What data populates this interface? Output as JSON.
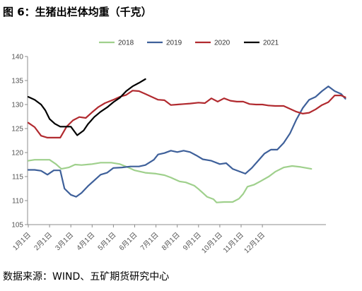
{
  "title": "图 6：生猪出栏体均重（千克）",
  "source": "数据来源：WIND、五矿期货研究中心",
  "chart_data": {
    "type": "line",
    "ylim": [
      105,
      140
    ],
    "yticks": [
      105,
      110,
      115,
      120,
      125,
      130,
      135,
      140
    ],
    "x_ticks": [
      "1月1日",
      "2月1日",
      "3月1日",
      "4月1日",
      "5月1日",
      "6月1日",
      "7月1日",
      "8月1日",
      "9月1日",
      "10月1日",
      "11月1日",
      "12月1日"
    ],
    "x_range_months": [
      0,
      12
    ],
    "legend_position": "top",
    "series": [
      {
        "name": "2018",
        "color": "#9fd08c",
        "points": [
          [
            0.0,
            118.3
          ],
          [
            0.3,
            118.5
          ],
          [
            0.6,
            118.5
          ],
          [
            1.0,
            118.5
          ],
          [
            1.3,
            117.6
          ],
          [
            1.55,
            116.6
          ],
          [
            1.9,
            116.9
          ],
          [
            2.2,
            117.5
          ],
          [
            2.5,
            117.4
          ],
          [
            3.0,
            117.6
          ],
          [
            3.4,
            117.9
          ],
          [
            3.9,
            117.9
          ],
          [
            4.3,
            117.6
          ],
          [
            4.7,
            116.9
          ],
          [
            5.0,
            116.3
          ],
          [
            5.5,
            115.8
          ],
          [
            6.0,
            115.6
          ],
          [
            6.4,
            115.3
          ],
          [
            6.7,
            114.8
          ],
          [
            7.1,
            114.0
          ],
          [
            7.4,
            113.8
          ],
          [
            7.8,
            113.1
          ],
          [
            8.0,
            112.4
          ],
          [
            8.2,
            111.6
          ],
          [
            8.4,
            110.8
          ],
          [
            8.7,
            110.3
          ],
          [
            8.85,
            109.6
          ],
          [
            9.2,
            109.7
          ],
          [
            9.6,
            109.7
          ],
          [
            9.9,
            110.4
          ],
          [
            10.1,
            111.4
          ],
          [
            10.3,
            112.9
          ],
          [
            10.6,
            113.3
          ],
          [
            10.9,
            114.0
          ],
          [
            11.3,
            115.0
          ],
          [
            11.6,
            116.0
          ],
          [
            12.0,
            116.9
          ],
          [
            12.4,
            117.2
          ],
          [
            12.8,
            117.0
          ],
          [
            13.3,
            116.6
          ]
        ]
      },
      {
        "name": "2019",
        "color": "#3e609a",
        "points": [
          [
            0.0,
            116.4
          ],
          [
            0.3,
            116.4
          ],
          [
            0.6,
            116.2
          ],
          [
            0.9,
            115.4
          ],
          [
            1.2,
            116.3
          ],
          [
            1.5,
            116.3
          ],
          [
            1.7,
            112.5
          ],
          [
            2.0,
            111.2
          ],
          [
            2.25,
            110.8
          ],
          [
            2.5,
            111.6
          ],
          [
            2.8,
            113.0
          ],
          [
            3.1,
            114.2
          ],
          [
            3.4,
            115.4
          ],
          [
            3.7,
            115.8
          ],
          [
            4.0,
            116.8
          ],
          [
            4.4,
            116.9
          ],
          [
            4.8,
            117.1
          ],
          [
            5.2,
            117.1
          ],
          [
            5.5,
            117.4
          ],
          [
            5.9,
            118.5
          ],
          [
            6.1,
            119.6
          ],
          [
            6.4,
            119.9
          ],
          [
            6.7,
            120.4
          ],
          [
            7.0,
            120.1
          ],
          [
            7.3,
            120.4
          ],
          [
            7.6,
            120.1
          ],
          [
            7.9,
            119.4
          ],
          [
            8.2,
            118.6
          ],
          [
            8.6,
            118.3
          ],
          [
            9.0,
            117.6
          ],
          [
            9.3,
            117.8
          ],
          [
            9.6,
            116.6
          ],
          [
            9.9,
            116.1
          ],
          [
            10.2,
            115.6
          ],
          [
            10.5,
            116.8
          ],
          [
            10.8,
            118.3
          ],
          [
            11.1,
            119.8
          ],
          [
            11.4,
            120.6
          ],
          [
            11.7,
            120.6
          ],
          [
            12.0,
            122.0
          ],
          [
            12.3,
            124.0
          ],
          [
            12.6,
            126.9
          ],
          [
            12.9,
            129.3
          ],
          [
            13.2,
            131.0
          ],
          [
            13.5,
            131.6
          ],
          [
            13.8,
            132.8
          ],
          [
            14.1,
            133.8
          ],
          [
            14.4,
            132.8
          ],
          [
            14.7,
            132.2
          ],
          [
            14.9,
            131.2
          ]
        ]
      },
      {
        "name": "2020",
        "color": "#b12a2f",
        "points": [
          [
            0.0,
            126.2
          ],
          [
            0.3,
            125.3
          ],
          [
            0.6,
            123.5
          ],
          [
            0.9,
            123.1
          ],
          [
            1.2,
            123.1
          ],
          [
            1.5,
            123.1
          ],
          [
            1.8,
            125.4
          ],
          [
            2.1,
            126.7
          ],
          [
            2.4,
            127.4
          ],
          [
            2.7,
            127.2
          ],
          [
            3.0,
            128.4
          ],
          [
            3.3,
            129.5
          ],
          [
            3.6,
            130.3
          ],
          [
            4.0,
            131.0
          ],
          [
            4.3,
            131.6
          ],
          [
            4.6,
            132.0
          ],
          [
            4.9,
            132.9
          ],
          [
            5.2,
            132.8
          ],
          [
            5.5,
            132.2
          ],
          [
            5.8,
            131.6
          ],
          [
            6.1,
            131.0
          ],
          [
            6.4,
            130.9
          ],
          [
            6.7,
            129.9
          ],
          [
            7.0,
            130.0
          ],
          [
            7.3,
            130.1
          ],
          [
            7.6,
            130.2
          ],
          [
            8.0,
            130.4
          ],
          [
            8.3,
            130.3
          ],
          [
            8.6,
            131.3
          ],
          [
            8.9,
            130.6
          ],
          [
            9.2,
            131.3
          ],
          [
            9.5,
            130.8
          ],
          [
            9.8,
            130.6
          ],
          [
            10.1,
            130.6
          ],
          [
            10.4,
            130.1
          ],
          [
            10.7,
            130.0
          ],
          [
            11.0,
            130.0
          ],
          [
            11.3,
            129.8
          ],
          [
            11.6,
            129.7
          ],
          [
            12.0,
            129.7
          ],
          [
            12.3,
            129.1
          ],
          [
            12.6,
            128.5
          ],
          [
            12.9,
            128.1
          ],
          [
            13.2,
            128.3
          ],
          [
            13.5,
            129.0
          ],
          [
            13.8,
            129.9
          ],
          [
            14.1,
            130.5
          ],
          [
            14.4,
            131.9
          ],
          [
            14.7,
            131.9
          ],
          [
            14.9,
            131.5
          ]
        ]
      },
      {
        "name": "2021",
        "color": "#000000",
        "points": [
          [
            0.0,
            131.6
          ],
          [
            0.3,
            131.0
          ],
          [
            0.6,
            130.0
          ],
          [
            0.8,
            128.8
          ],
          [
            1.0,
            127.0
          ],
          [
            1.25,
            126.0
          ],
          [
            1.5,
            125.4
          ],
          [
            1.8,
            125.4
          ],
          [
            2.0,
            125.4
          ],
          [
            2.3,
            123.6
          ],
          [
            2.6,
            124.6
          ],
          [
            2.8,
            125.9
          ],
          [
            3.1,
            127.4
          ],
          [
            3.4,
            128.5
          ],
          [
            3.7,
            129.4
          ],
          [
            4.0,
            130.5
          ],
          [
            4.3,
            131.4
          ],
          [
            4.6,
            132.8
          ],
          [
            4.9,
            133.8
          ],
          [
            5.2,
            134.5
          ],
          [
            5.5,
            135.3
          ]
        ]
      }
    ]
  }
}
